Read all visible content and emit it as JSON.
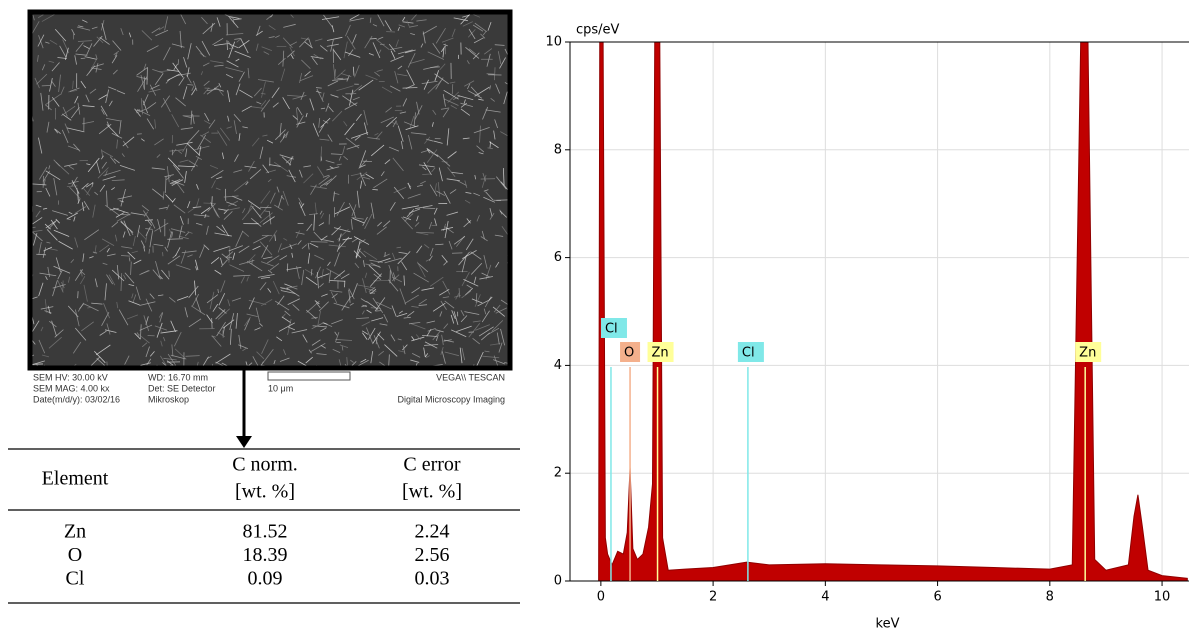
{
  "sem_info": {
    "lines": [
      [
        "SEM HV: 30.00 kV",
        "WD: 16.70 mm",
        "VEGA\\\\ TESCAN"
      ],
      [
        "SEM MAG: 4.00 kx",
        "Det: SE Detector",
        "10 μm"
      ],
      [
        "Date(m/d/y): 03/02/16",
        "Mikroskop",
        "Digital Microscopy Imaging"
      ]
    ]
  },
  "table": {
    "header": [
      "Element",
      [
        "C norm.",
        "[wt. %]"
      ],
      [
        "C error",
        "[wt. %]"
      ]
    ],
    "rows": [
      [
        "Zn",
        "81.52",
        "2.24"
      ],
      [
        "O",
        "18.39",
        "2.56"
      ],
      [
        "Cl",
        "0.09",
        "0.03"
      ]
    ]
  },
  "chart_data": {
    "type": "area",
    "y_label": "cps/eV",
    "x_label": "keV",
    "color": "#c00000",
    "x": [
      -0.1,
      -0.04,
      -0.02,
      0.04,
      0.08,
      0.12,
      0.2,
      0.3,
      0.4,
      0.47,
      0.52,
      0.57,
      0.65,
      0.75,
      0.85,
      0.92,
      0.96,
      1.05,
      1.1,
      1.2,
      1.5,
      2.0,
      2.6,
      3.0,
      4.0,
      5.0,
      6.0,
      7.0,
      8.0,
      8.4,
      8.55,
      8.68,
      8.8,
      9.0,
      9.4,
      9.5,
      9.57,
      9.65,
      9.75,
      10.0,
      10.45
    ],
    "y": [
      0,
      0,
      10,
      10,
      0.8,
      0.5,
      0.3,
      0.55,
      0.5,
      0.9,
      2.1,
      0.6,
      0.4,
      0.5,
      1.0,
      1.8,
      10,
      10,
      0.8,
      0.2,
      0.22,
      0.25,
      0.35,
      0.3,
      0.32,
      0.3,
      0.28,
      0.25,
      0.22,
      0.3,
      10,
      10,
      0.4,
      0.2,
      0.3,
      1.2,
      1.6,
      1.0,
      0.2,
      0.1,
      0.05
    ],
    "xlim": [
      -0.55,
      10.48
    ],
    "ylim": [
      0,
      10
    ],
    "xticks": [
      0,
      2,
      4,
      6,
      8,
      10
    ],
    "yticks": [
      0,
      2,
      4,
      6,
      8,
      10
    ],
    "grid": true,
    "elements": [
      {
        "label": "Cl",
        "x": 0.18,
        "color": "#80e8e8"
      },
      {
        "label": "O",
        "x": 0.52,
        "color": "#f4b08c"
      },
      {
        "label": "Zn",
        "x": 1.01,
        "color": "#ffff99"
      },
      {
        "label": "Cl",
        "x": 2.62,
        "color": "#80e8e8"
      },
      {
        "label": "Zn",
        "x": 8.63,
        "color": "#ffff99"
      }
    ]
  }
}
